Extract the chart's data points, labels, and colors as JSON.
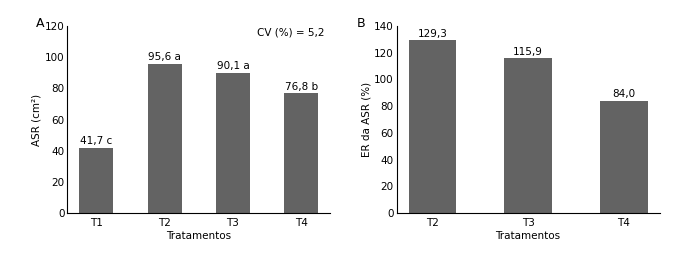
{
  "chart_A": {
    "categories": [
      "T1",
      "T2",
      "T3",
      "T4"
    ],
    "values": [
      41.7,
      95.6,
      90.1,
      76.8
    ],
    "labels": [
      "41,7 c",
      "95,6 a",
      "90,1 a",
      "76,8 b"
    ],
    "ylabel": "ASR (cm²)",
    "xlabel": "Tratamentos",
    "ylim": [
      0,
      120
    ],
    "yticks": [
      0,
      20,
      40,
      60,
      80,
      100,
      120
    ],
    "cv_text": "CV (%) = 5,2",
    "panel_label": "A",
    "bar_color": "#636363",
    "bar_width": 0.5
  },
  "chart_B": {
    "categories": [
      "T2",
      "T3",
      "T4"
    ],
    "values": [
      129.3,
      115.9,
      84.0
    ],
    "labels": [
      "129,3",
      "115,9",
      "84,0"
    ],
    "ylabel": "ER da ASR (%)",
    "xlabel": "Tratamentos",
    "ylim": [
      0,
      140
    ],
    "yticks": [
      0,
      20,
      40,
      60,
      80,
      100,
      120,
      140
    ],
    "panel_label": "B",
    "bar_color": "#636363",
    "bar_width": 0.5
  },
  "fontsize": 7.5,
  "label_fontsize": 7.5,
  "background_color": "#ffffff",
  "figsize": [
    6.73,
    2.6
  ],
  "dpi": 100
}
